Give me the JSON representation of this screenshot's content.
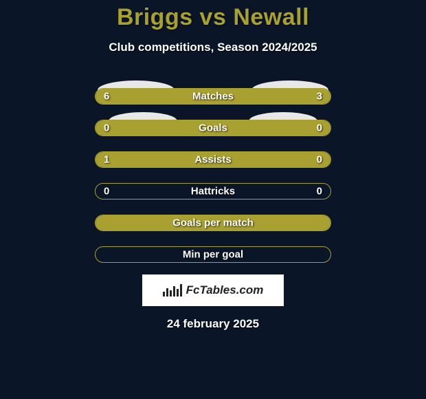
{
  "title": "Briggs vs Newall",
  "subtitle": "Club competitions, Season 2024/2025",
  "logo_text": "FcTables.com",
  "date": "24 february 2025",
  "colors": {
    "background": "#0a1628",
    "accent": "#a8a030",
    "ellipse": "#e8e8e8",
    "text": "#ffffff",
    "logo_bg": "#ffffff",
    "logo_text": "#222222"
  },
  "stats": [
    {
      "label": "Matches",
      "left_value": "6",
      "right_value": "3",
      "left_pct": 66.7,
      "right_pct": 33.3,
      "left_color": "#a8a030",
      "right_color": "#a8a030",
      "show_left_ellipse": true,
      "show_right_ellipse": true,
      "ellipse_size": 1
    },
    {
      "label": "Goals",
      "left_value": "0",
      "right_value": "0",
      "left_pct": 0,
      "right_pct": 0,
      "left_color": "#a8a030",
      "right_color": "#a8a030",
      "full_fill": true,
      "show_left_ellipse": true,
      "show_right_ellipse": true,
      "ellipse_size": 2
    },
    {
      "label": "Assists",
      "left_value": "1",
      "right_value": "0",
      "left_pct": 76,
      "right_pct": 24,
      "left_color": "#a8a030",
      "right_color": "#a8a030",
      "show_left_ellipse": false,
      "show_right_ellipse": false
    },
    {
      "label": "Hattricks",
      "left_value": "0",
      "right_value": "0",
      "left_pct": 0,
      "right_pct": 0,
      "left_color": "#a8a030",
      "right_color": "#a8a030",
      "show_left_ellipse": false,
      "show_right_ellipse": false
    },
    {
      "label": "Goals per match",
      "left_value": "",
      "right_value": "",
      "left_pct": 0,
      "right_pct": 0,
      "full_fill": true,
      "left_color": "#a8a030",
      "right_color": "#a8a030",
      "show_left_ellipse": false,
      "show_right_ellipse": false
    },
    {
      "label": "Min per goal",
      "left_value": "",
      "right_value": "",
      "left_pct": 0,
      "right_pct": 0,
      "left_color": "#a8a030",
      "right_color": "#a8a030",
      "show_left_ellipse": false,
      "show_right_ellipse": false
    }
  ]
}
